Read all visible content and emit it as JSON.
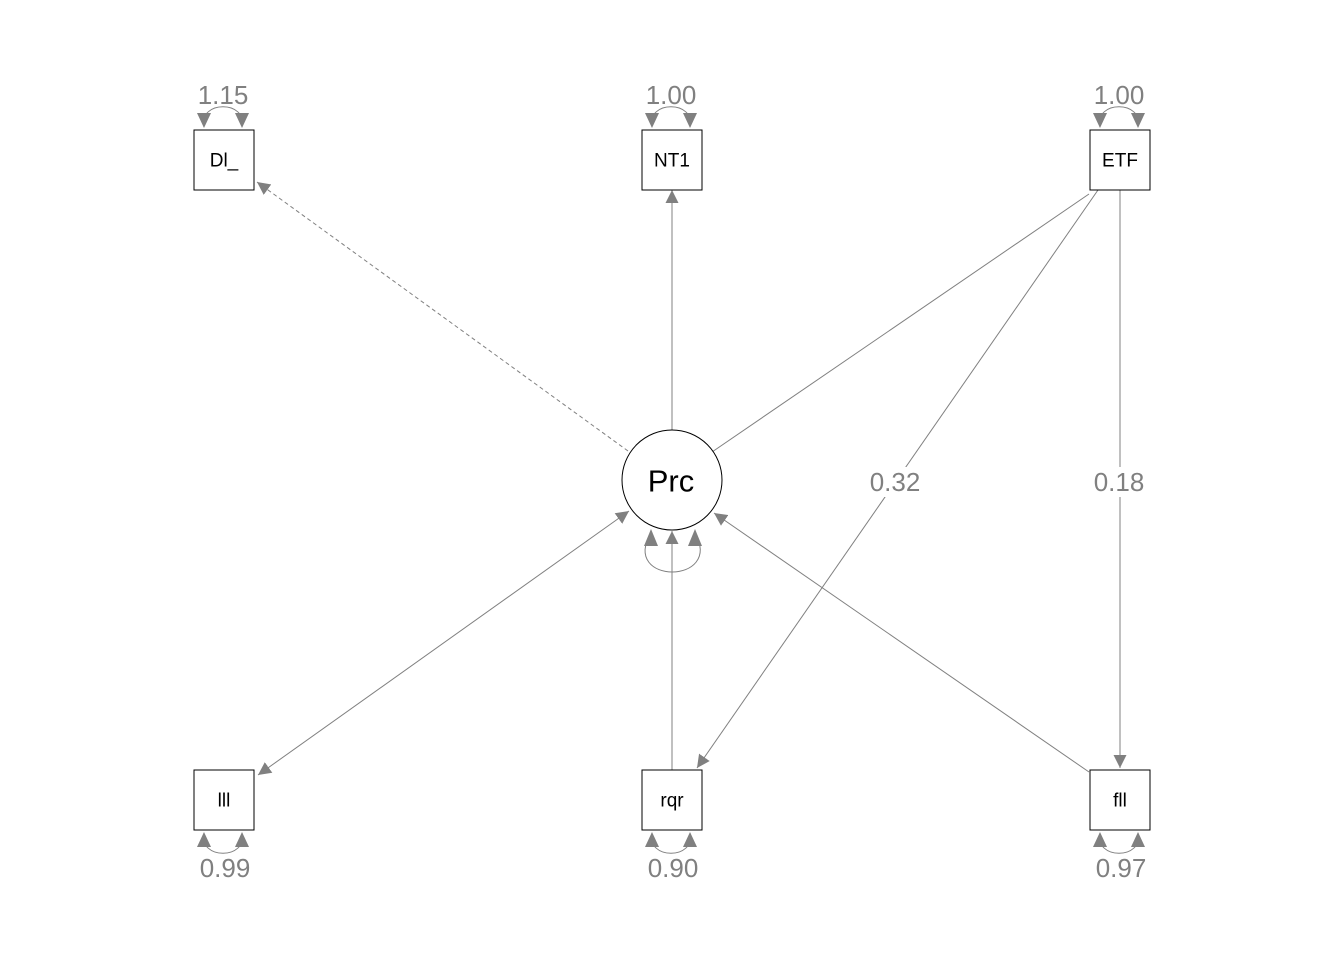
{
  "diagram": {
    "type": "path-diagram",
    "colors": {
      "edge": "#808080",
      "node_stroke": "#000000",
      "text": "#000000",
      "edge_text": "#808080"
    },
    "latent": {
      "id": "Prc",
      "label": "Prc"
    },
    "observed": [
      {
        "id": "Dl_",
        "label": "Dl_",
        "residual": "1.15"
      },
      {
        "id": "NT1",
        "label": "NT1",
        "residual": "1.00"
      },
      {
        "id": "ETF",
        "label": "ETF",
        "residual": "1.00"
      },
      {
        "id": "lll",
        "label": "lll",
        "residual": "0.99"
      },
      {
        "id": "rqr",
        "label": "rqr",
        "residual": "0.90"
      },
      {
        "id": "fll",
        "label": "fll",
        "residual": "0.97"
      }
    ],
    "edges": [
      {
        "from": "Prc",
        "to": "Dl_",
        "style": "dashed",
        "arrow": "end",
        "label": ""
      },
      {
        "from": "Prc",
        "to": "NT1",
        "style": "solid",
        "arrow": "end",
        "label": ""
      },
      {
        "from": "ETF",
        "to": "Prc",
        "style": "solid",
        "arrow": "none",
        "label": ""
      },
      {
        "from": "ETF",
        "to": "rqr",
        "style": "solid",
        "arrow": "end",
        "label": "0.32"
      },
      {
        "from": "ETF",
        "to": "fll",
        "style": "solid",
        "arrow": "end",
        "label": "0.18"
      },
      {
        "from": "lll",
        "to": "Prc",
        "style": "solid",
        "arrow": "both",
        "label": ""
      },
      {
        "from": "rqr",
        "to": "Prc",
        "style": "solid",
        "arrow": "end",
        "label": ""
      },
      {
        "from": "fll",
        "to": "Prc",
        "style": "solid",
        "arrow": "end",
        "label": ""
      }
    ],
    "latent_variance": {
      "label": ""
    }
  }
}
